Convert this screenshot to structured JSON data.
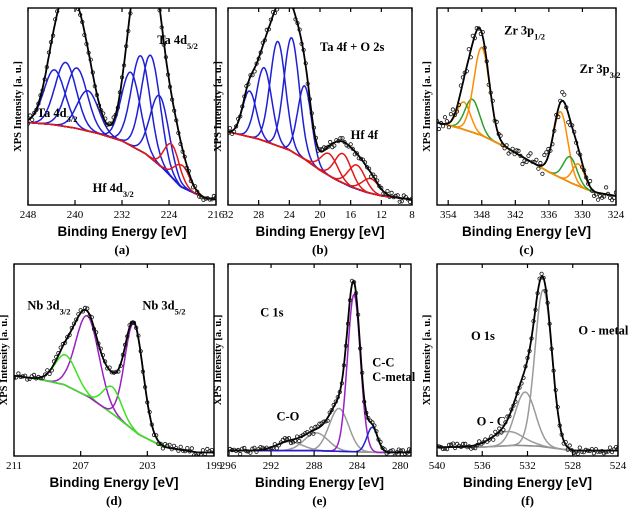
{
  "figure": {
    "ylabel": "XPS Intensity [a. u.]",
    "xlabel": "Binding Energy [eV]"
  },
  "chart_data": [
    {
      "id": "a",
      "type": "line",
      "panel_label": "(a)",
      "xlim": [
        248,
        216
      ],
      "xticks": [
        "248",
        "240",
        "232",
        "224",
        "216"
      ],
      "annotations": [
        {
          "base": "Ta 4d",
          "sub": "5/2",
          "x": 226,
          "level": 0.88
        },
        {
          "base": "Ta 4d",
          "sub": "3/2",
          "x": 246.5,
          "level": 0.48
        },
        {
          "base": "Hf 4d",
          "sub": "3/2",
          "x": 237,
          "level": 0.07
        }
      ],
      "background": [
        [
          248,
          0.45
        ],
        [
          244,
          0.44
        ],
        [
          240,
          0.42
        ],
        [
          236,
          0.39
        ],
        [
          232,
          0.35
        ],
        [
          228,
          0.28
        ],
        [
          225,
          0.2
        ],
        [
          222,
          0.1
        ],
        [
          218,
          0.04
        ],
        [
          216,
          0.03
        ]
      ],
      "peaks": [
        {
          "color": "#1f1fd6",
          "center": 243.5,
          "height": 0.3,
          "width": 1.8
        },
        {
          "color": "#1f1fd6",
          "center": 241.6,
          "height": 0.35,
          "width": 1.8
        },
        {
          "color": "#1f1fd6",
          "center": 239.7,
          "height": 0.33,
          "width": 1.8
        },
        {
          "color": "#1f1fd6",
          "center": 237.8,
          "height": 0.22,
          "width": 1.8
        },
        {
          "color": "#1f1fd6",
          "center": 230.5,
          "height": 0.4,
          "width": 1.6
        },
        {
          "color": "#1f1fd6",
          "center": 228.8,
          "height": 0.52,
          "width": 1.6
        },
        {
          "color": "#1f1fd6",
          "center": 227.1,
          "height": 0.56,
          "width": 1.6
        },
        {
          "color": "#1f1fd6",
          "center": 225.6,
          "height": 0.38,
          "width": 1.6
        },
        {
          "color": "#e01818",
          "center": 223.5,
          "height": 0.18,
          "width": 1.3
        },
        {
          "color": "#e01818",
          "center": 221.8,
          "height": 0.12,
          "width": 1.3
        }
      ]
    },
    {
      "id": "b",
      "type": "line",
      "panel_label": "(b)",
      "xlim": [
        32,
        8
      ],
      "xticks": [
        "32",
        "28",
        "24",
        "20",
        "16",
        "12",
        "8"
      ],
      "annotations": [
        {
          "base": "Ta 4f + O 2s",
          "sub": "",
          "x": 20,
          "level": 0.84
        },
        {
          "base": "Hf 4f",
          "sub": "",
          "x": 16,
          "level": 0.36
        }
      ],
      "background": [
        [
          32,
          0.4
        ],
        [
          30,
          0.38
        ],
        [
          28,
          0.36
        ],
        [
          26,
          0.33
        ],
        [
          24,
          0.3
        ],
        [
          22,
          0.25
        ],
        [
          20,
          0.19
        ],
        [
          18,
          0.14
        ],
        [
          16,
          0.1
        ],
        [
          14,
          0.07
        ],
        [
          12,
          0.05
        ],
        [
          10,
          0.04
        ],
        [
          8,
          0.03
        ]
      ],
      "peaks": [
        {
          "color": "#1f1fd6",
          "center": 29.2,
          "height": 0.25,
          "width": 0.9
        },
        {
          "color": "#1f1fd6",
          "center": 27.3,
          "height": 0.4,
          "width": 1.0
        },
        {
          "color": "#1f1fd6",
          "center": 25.5,
          "height": 0.57,
          "width": 1.0
        },
        {
          "color": "#1f1fd6",
          "center": 23.7,
          "height": 0.62,
          "width": 1.0
        },
        {
          "color": "#1f1fd6",
          "center": 22.0,
          "height": 0.4,
          "width": 0.9
        },
        {
          "color": "#e01818",
          "center": 18.8,
          "height": 0.12,
          "width": 1.1
        },
        {
          "color": "#e01818",
          "center": 17.0,
          "height": 0.16,
          "width": 1.1
        },
        {
          "color": "#e01818",
          "center": 15.2,
          "height": 0.13,
          "width": 1.1
        },
        {
          "color": "#e01818",
          "center": 13.4,
          "height": 0.08,
          "width": 1.1
        }
      ]
    },
    {
      "id": "c",
      "type": "line",
      "panel_label": "(c)",
      "xlim": [
        356,
        324
      ],
      "xticks": [
        "354",
        "348",
        "342",
        "336",
        "330",
        "324"
      ],
      "annotations": [
        {
          "base": "Zr 3p",
          "sub": "1/2",
          "x": 344,
          "level": 0.93
        },
        {
          "base": "Zr 3p",
          "sub": "3/2",
          "x": 330.5,
          "level": 0.72
        }
      ],
      "background": [
        [
          356,
          0.45
        ],
        [
          352,
          0.42
        ],
        [
          348,
          0.38
        ],
        [
          344,
          0.32
        ],
        [
          340,
          0.25
        ],
        [
          336,
          0.18
        ],
        [
          332,
          0.12
        ],
        [
          328,
          0.07
        ],
        [
          324,
          0.05
        ]
      ],
      "peaks": [
        {
          "color": "#ff8c00",
          "center": 351.2,
          "height": 0.15,
          "width": 1.2
        },
        {
          "color": "#2aa02a",
          "center": 349.7,
          "height": 0.18,
          "width": 1.3
        },
        {
          "color": "#ff8c00",
          "center": 348.0,
          "height": 0.48,
          "width": 1.4
        },
        {
          "color": "#ff8c00",
          "center": 333.9,
          "height": 0.36,
          "width": 1.3
        },
        {
          "color": "#2aa02a",
          "center": 332.2,
          "height": 0.14,
          "width": 1.2
        },
        {
          "color": "#ff8c00",
          "center": 330.7,
          "height": 0.12,
          "width": 1.1
        }
      ]
    },
    {
      "id": "d",
      "type": "line",
      "panel_label": "(d)",
      "xlim": [
        211,
        199
      ],
      "xticks": [
        "211",
        "207",
        "203",
        "199"
      ],
      "annotations": [
        {
          "base": "Nb 3d",
          "sub": "3/2",
          "x": 210.2,
          "level": 0.82
        },
        {
          "base": "Nb 3d",
          "sub": "5/2",
          "x": 203.3,
          "level": 0.82
        }
      ],
      "background": [
        [
          211,
          0.45
        ],
        [
          209.5,
          0.43
        ],
        [
          208,
          0.4
        ],
        [
          206.5,
          0.33
        ],
        [
          205,
          0.23
        ],
        [
          203.5,
          0.12
        ],
        [
          202,
          0.05
        ],
        [
          200,
          0.02
        ],
        [
          199,
          0.02
        ]
      ],
      "peaks": [
        {
          "color": "#9a1fc4",
          "center": 206.6,
          "height": 0.45,
          "width": 0.7
        },
        {
          "color": "#3fe020",
          "center": 207.9,
          "height": 0.17,
          "width": 0.65
        },
        {
          "color": "#9a1fc4",
          "center": 203.8,
          "height": 0.6,
          "width": 0.55
        },
        {
          "color": "#3fe020",
          "center": 205.1,
          "height": 0.15,
          "width": 0.55
        }
      ]
    },
    {
      "id": "e",
      "type": "line",
      "panel_label": "(e)",
      "xlim": [
        296,
        279
      ],
      "xticks": [
        "296",
        "292",
        "288",
        "284",
        "280"
      ],
      "annotations": [
        {
          "base": "C 1s",
          "sub": "",
          "x": 293,
          "level": 0.78
        },
        {
          "base": "C-C",
          "sub": "",
          "x": 282.6,
          "level": 0.5
        },
        {
          "base": "C-metal",
          "sub": "",
          "x": 282.6,
          "level": 0.42
        },
        {
          "base": "C-O",
          "sub": "",
          "x": 291.5,
          "level": 0.2
        }
      ],
      "background": [
        [
          296,
          0.03
        ],
        [
          292,
          0.03
        ],
        [
          288,
          0.03
        ],
        [
          285,
          0.025
        ],
        [
          282,
          0.02
        ],
        [
          279,
          0.02
        ]
      ],
      "peaks": [
        {
          "color": "#9a9a9a",
          "center": 290.3,
          "height": 0.05,
          "width": 1.2
        },
        {
          "color": "#9a9a9a",
          "center": 287.8,
          "height": 0.1,
          "width": 1.1
        },
        {
          "color": "#9a9a9a",
          "center": 285.7,
          "height": 0.24,
          "width": 0.9
        },
        {
          "color": "#9a1fc4",
          "center": 284.3,
          "height": 0.88,
          "width": 0.6
        },
        {
          "color": "#1f1fd6",
          "center": 282.6,
          "height": 0.14,
          "width": 0.5
        }
      ]
    },
    {
      "id": "f",
      "type": "line",
      "panel_label": "(f)",
      "xlim": [
        540,
        524
      ],
      "xticks": [
        "540",
        "536",
        "532",
        "528",
        "524"
      ],
      "annotations": [
        {
          "base": "O 1s",
          "sub": "",
          "x": 537,
          "level": 0.65
        },
        {
          "base": "O - metal",
          "sub": "",
          "x": 527.5,
          "level": 0.68
        },
        {
          "base": "O - C",
          "sub": "",
          "x": 536.5,
          "level": 0.17
        }
      ],
      "background": [
        [
          540,
          0.05
        ],
        [
          536,
          0.05
        ],
        [
          533,
          0.06
        ],
        [
          531,
          0.055
        ],
        [
          528,
          0.03
        ],
        [
          524,
          0.03
        ]
      ],
      "peaks": [
        {
          "color": "#9a9a9a",
          "center": 533.8,
          "height": 0.08,
          "width": 1.4
        },
        {
          "color": "#9a9a9a",
          "center": 532.2,
          "height": 0.3,
          "width": 0.9
        },
        {
          "color": "#9a9a9a",
          "center": 530.6,
          "height": 0.88,
          "width": 0.75
        }
      ]
    }
  ]
}
